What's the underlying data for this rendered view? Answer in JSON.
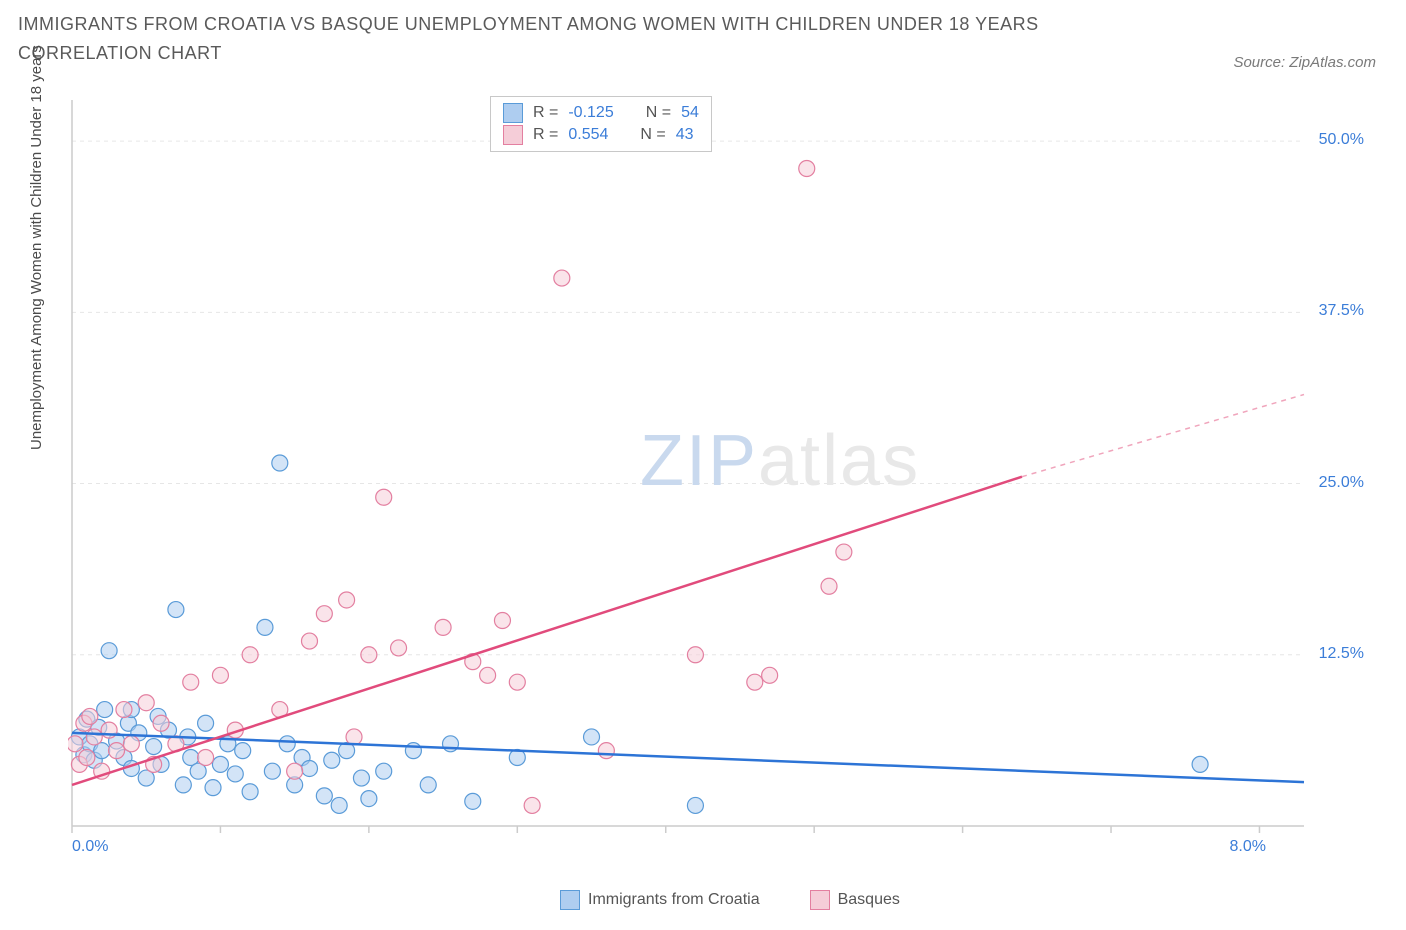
{
  "title": "IMMIGRANTS FROM CROATIA VS BASQUE UNEMPLOYMENT AMONG WOMEN WITH CHILDREN UNDER 18 YEARS CORRELATION CHART",
  "source": "Source: ZipAtlas.com",
  "watermark_zip": "ZIP",
  "watermark_atlas": "atlas",
  "y_axis_label": "Unemployment Among Women with Children Under 18 years",
  "chart": {
    "type": "scatter",
    "background_color": "#ffffff",
    "grid_color": "#e6e6e6",
    "axis_color": "#cccccc",
    "xlim": [
      0,
      8.3
    ],
    "ylim": [
      0,
      53
    ],
    "x_ticks": [
      0,
      1,
      2,
      3,
      4,
      5,
      6,
      7,
      8
    ],
    "x_tick_labels": [
      "0.0%",
      "",
      "",
      "",
      "",
      "",
      "",
      "",
      "8.0%"
    ],
    "y_ticks": [
      12.5,
      25.0,
      37.5,
      50.0
    ],
    "y_tick_labels": [
      "12.5%",
      "25.0%",
      "37.5%",
      "50.0%"
    ],
    "series": [
      {
        "name": "Immigrants from Croatia",
        "color_fill": "#aecdf0",
        "color_stroke": "#5a9bd8",
        "r_value": "-0.125",
        "n_value": "54",
        "trend_line": {
          "x1": 0,
          "y1": 6.8,
          "x2": 8.3,
          "y2": 3.2,
          "color": "#2d74d6",
          "width": 2.5
        },
        "points": [
          [
            0.05,
            6.5
          ],
          [
            0.08,
            5.2
          ],
          [
            0.1,
            7.8
          ],
          [
            0.12,
            6.0
          ],
          [
            0.15,
            4.8
          ],
          [
            0.18,
            7.2
          ],
          [
            0.2,
            5.5
          ],
          [
            0.22,
            8.5
          ],
          [
            0.25,
            12.8
          ],
          [
            0.3,
            6.2
          ],
          [
            0.35,
            5.0
          ],
          [
            0.38,
            7.5
          ],
          [
            0.4,
            4.2
          ],
          [
            0.45,
            6.8
          ],
          [
            0.5,
            3.5
          ],
          [
            0.55,
            5.8
          ],
          [
            0.58,
            8.0
          ],
          [
            0.6,
            4.5
          ],
          [
            0.65,
            7.0
          ],
          [
            0.7,
            15.8
          ],
          [
            0.75,
            3.0
          ],
          [
            0.78,
            6.5
          ],
          [
            0.8,
            5.0
          ],
          [
            0.85,
            4.0
          ],
          [
            0.9,
            7.5
          ],
          [
            0.95,
            2.8
          ],
          [
            1.0,
            4.5
          ],
          [
            1.05,
            6.0
          ],
          [
            1.1,
            3.8
          ],
          [
            1.15,
            5.5
          ],
          [
            1.2,
            2.5
          ],
          [
            1.3,
            14.5
          ],
          [
            1.35,
            4.0
          ],
          [
            1.4,
            26.5
          ],
          [
            1.45,
            6.0
          ],
          [
            1.5,
            3.0
          ],
          [
            1.55,
            5.0
          ],
          [
            1.6,
            4.2
          ],
          [
            1.7,
            2.2
          ],
          [
            1.75,
            4.8
          ],
          [
            1.8,
            1.5
          ],
          [
            1.85,
            5.5
          ],
          [
            1.95,
            3.5
          ],
          [
            2.0,
            2.0
          ],
          [
            2.1,
            4.0
          ],
          [
            2.3,
            5.5
          ],
          [
            2.4,
            3.0
          ],
          [
            2.55,
            6.0
          ],
          [
            2.7,
            1.8
          ],
          [
            3.0,
            5.0
          ],
          [
            3.5,
            6.5
          ],
          [
            4.2,
            1.5
          ],
          [
            7.6,
            4.5
          ],
          [
            0.4,
            8.5
          ]
        ]
      },
      {
        "name": "Basques",
        "color_fill": "#f5cdd8",
        "color_stroke": "#e37fa0",
        "r_value": "0.554",
        "n_value": "43",
        "trend_line": {
          "x1": 0,
          "y1": 3.0,
          "x2": 6.4,
          "y2": 25.5,
          "color": "#e14b7c",
          "width": 2.5
        },
        "trend_line_dashed": {
          "x1": 6.4,
          "y1": 25.5,
          "x2": 8.3,
          "y2": 31.5,
          "color": "#f0a5bc",
          "width": 1.5
        },
        "points": [
          [
            0.02,
            6.0
          ],
          [
            0.05,
            4.5
          ],
          [
            0.08,
            7.5
          ],
          [
            0.1,
            5.0
          ],
          [
            0.12,
            8.0
          ],
          [
            0.15,
            6.5
          ],
          [
            0.2,
            4.0
          ],
          [
            0.25,
            7.0
          ],
          [
            0.3,
            5.5
          ],
          [
            0.35,
            8.5
          ],
          [
            0.4,
            6.0
          ],
          [
            0.5,
            9.0
          ],
          [
            0.55,
            4.5
          ],
          [
            0.6,
            7.5
          ],
          [
            0.7,
            6.0
          ],
          [
            0.8,
            10.5
          ],
          [
            0.9,
            5.0
          ],
          [
            1.0,
            11.0
          ],
          [
            1.1,
            7.0
          ],
          [
            1.2,
            12.5
          ],
          [
            1.4,
            8.5
          ],
          [
            1.5,
            4.0
          ],
          [
            1.6,
            13.5
          ],
          [
            1.7,
            15.5
          ],
          [
            1.85,
            16.5
          ],
          [
            1.9,
            6.5
          ],
          [
            2.0,
            12.5
          ],
          [
            2.1,
            24.0
          ],
          [
            2.2,
            13.0
          ],
          [
            2.5,
            14.5
          ],
          [
            2.7,
            12.0
          ],
          [
            2.8,
            11.0
          ],
          [
            2.9,
            15.0
          ],
          [
            3.0,
            10.5
          ],
          [
            3.1,
            1.5
          ],
          [
            3.3,
            40.0
          ],
          [
            3.6,
            5.5
          ],
          [
            4.2,
            12.5
          ],
          [
            4.6,
            10.5
          ],
          [
            4.7,
            11.0
          ],
          [
            4.95,
            48.0
          ],
          [
            5.1,
            17.5
          ],
          [
            5.2,
            20.0
          ]
        ]
      }
    ]
  },
  "stats_labels": {
    "r": "R =",
    "n": "N ="
  },
  "bottom_legend": [
    {
      "label": "Immigrants from Croatia",
      "fill": "#aecdf0",
      "stroke": "#5a9bd8"
    },
    {
      "label": "Basques",
      "fill": "#f5cdd8",
      "stroke": "#e37fa0"
    }
  ]
}
